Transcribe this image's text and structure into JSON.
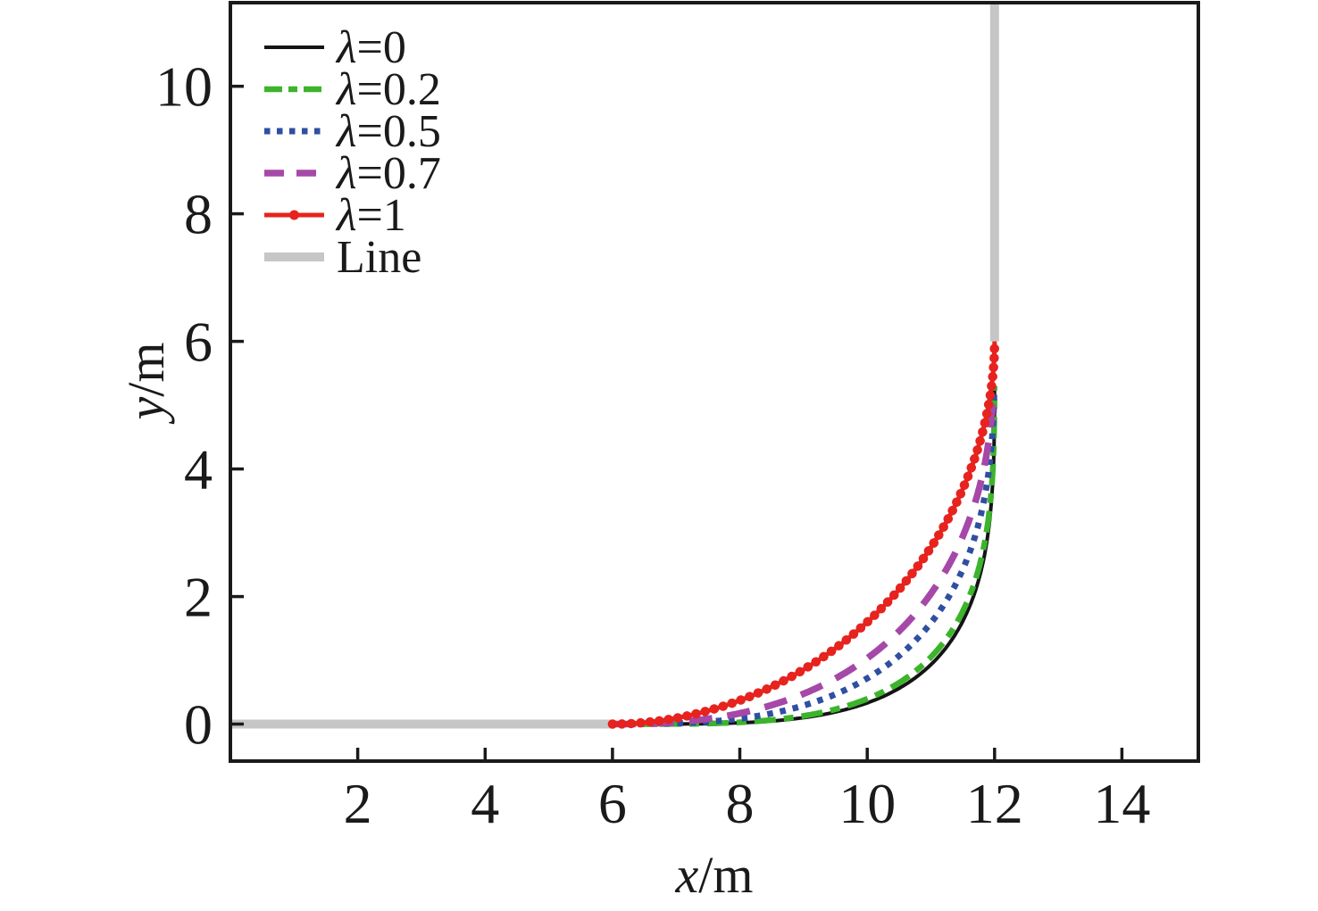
{
  "figure": {
    "background": "#ffffff",
    "text_color": "#1a1a1a"
  },
  "chart_data": {
    "type": "line",
    "title": "",
    "xlabel": "x/m",
    "ylabel": "y/m",
    "xlim": [
      0,
      15.2
    ],
    "ylim": [
      -0.58,
      11.31
    ],
    "xticks": [
      2,
      4,
      6,
      8,
      10,
      12,
      14
    ],
    "yticks": [
      0,
      2,
      4,
      6,
      8,
      10
    ],
    "grid": false,
    "legend_position": "upper-left",
    "axis_color": "#1a1a1a",
    "series": [
      {
        "key": "lambda-0",
        "name": "λ=0",
        "color": "#141414",
        "line_style": "solid",
        "line_width": 4,
        "marker": "none",
        "shape_exponent": 3.95,
        "start": [
          6,
          0
        ],
        "end": [
          12,
          5.3
        ],
        "points": [
          [
            7,
            0
          ],
          [
            7.5,
            0.01
          ],
          [
            8,
            0.02
          ],
          [
            8.5,
            0.05
          ],
          [
            9,
            0.1
          ],
          [
            9.5,
            0.19
          ],
          [
            10,
            0.33
          ],
          [
            10.5,
            0.56
          ],
          [
            11,
            0.93
          ],
          [
            11.5,
            1.61
          ],
          [
            11.75,
            2.26
          ],
          [
            11.9,
            3.01
          ],
          [
            11.97,
            3.78
          ],
          [
            12,
            5.3
          ]
        ]
      },
      {
        "key": "lambda-0-2",
        "name": "λ=0.2",
        "color": "#3cb42c",
        "line_style": "dash-dot",
        "line_width": 6.5,
        "marker": "none",
        "shape_exponent": 3.7,
        "start": [
          6,
          0
        ],
        "end": [
          12,
          5.3
        ],
        "points": [
          [
            7,
            0.01
          ],
          [
            7.5,
            0.01
          ],
          [
            8,
            0.03
          ],
          [
            8.5,
            0.06
          ],
          [
            9,
            0.13
          ],
          [
            9.5,
            0.23
          ],
          [
            10,
            0.4
          ],
          [
            10.5,
            0.65
          ],
          [
            11,
            1.05
          ],
          [
            11.5,
            1.77
          ],
          [
            11.75,
            2.44
          ],
          [
            11.9,
            3.19
          ],
          [
            11.97,
            3.96
          ],
          [
            12,
            5.3
          ]
        ]
      },
      {
        "key": "lambda-0-5",
        "name": "λ=0.5",
        "color": "#2f4fa2",
        "line_style": "dotted",
        "line_width": 7,
        "marker": "none",
        "shape_exponent": 2.9,
        "start": [
          6,
          0
        ],
        "end": [
          11.99,
          5.25
        ],
        "points": [
          [
            7,
            0.01
          ],
          [
            7.5,
            0.04
          ],
          [
            8,
            0.09
          ],
          [
            8.5,
            0.17
          ],
          [
            9,
            0.29
          ],
          [
            9.5,
            0.47
          ],
          [
            10,
            0.72
          ],
          [
            10.5,
            1.07
          ],
          [
            11,
            1.59
          ],
          [
            11.5,
            2.42
          ],
          [
            11.75,
            3.14
          ],
          [
            11.9,
            3.9
          ],
          [
            11.97,
            4.61
          ],
          [
            11.99,
            5.25
          ]
        ]
      },
      {
        "key": "lambda-0-7",
        "name": "λ=0.7",
        "color": "#a648a8",
        "line_style": "dashed",
        "line_width": 7.5,
        "marker": "none",
        "shape_exponent": 2.45,
        "start": [
          6,
          0
        ],
        "end": [
          11.98,
          5.2
        ],
        "points": [
          [
            6.5,
            0.01
          ],
          [
            7,
            0.03
          ],
          [
            7.5,
            0.08
          ],
          [
            8,
            0.17
          ],
          [
            8.5,
            0.3
          ],
          [
            9,
            0.48
          ],
          [
            9.5,
            0.71
          ],
          [
            10,
            1.03
          ],
          [
            10.5,
            1.46
          ],
          [
            11,
            2.04
          ],
          [
            11.5,
            2.94
          ],
          [
            11.75,
            3.67
          ],
          [
            11.9,
            4.38
          ],
          [
            11.98,
            5.2
          ]
        ]
      },
      {
        "key": "lambda-1",
        "name": "λ=1",
        "color": "#e6231e",
        "line_style": "solid",
        "line_width": 5,
        "marker": "dot",
        "shape_exponent": 1.95,
        "start": [
          6,
          0
        ],
        "end": [
          12,
          6
        ],
        "points": [
          [
            6,
            0
          ],
          [
            6.5,
            0.02
          ],
          [
            7,
            0.09
          ],
          [
            7.5,
            0.21
          ],
          [
            8,
            0.37
          ],
          [
            8.5,
            0.59
          ],
          [
            9,
            0.85
          ],
          [
            9.5,
            1.19
          ],
          [
            10,
            1.6
          ],
          [
            10.5,
            2.11
          ],
          [
            11,
            2.77
          ],
          [
            11.25,
            3.18
          ],
          [
            11.5,
            3.69
          ],
          [
            11.75,
            4.36
          ],
          [
            11.9,
            4.97
          ],
          [
            12,
            6
          ]
        ]
      },
      {
        "key": "line",
        "name": "Line",
        "color": "#c6c6c6",
        "line_style": "solid",
        "line_width": 10,
        "marker": "none",
        "segments": [
          [
            [
              0,
              0
            ],
            [
              6,
              0
            ]
          ],
          [
            [
              12,
              6
            ],
            [
              12,
              11.31
            ]
          ]
        ]
      }
    ]
  }
}
